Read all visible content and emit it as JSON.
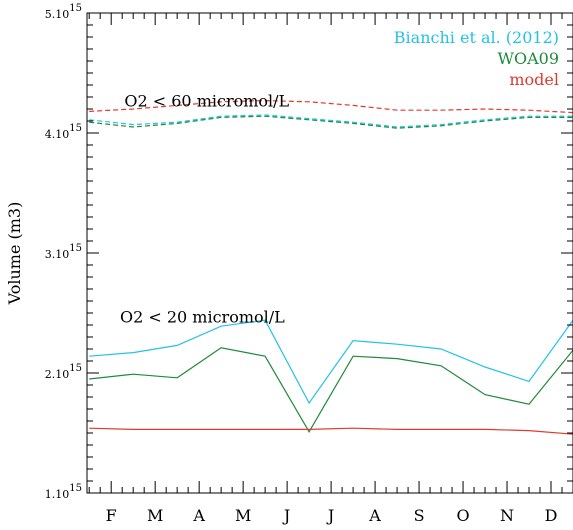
{
  "chart_data": {
    "type": "line",
    "title": "",
    "xlabel": "",
    "ylabel": "Volume (m3)",
    "x_tick_labels": [
      "F",
      "M",
      "A",
      "M",
      "J",
      "J",
      "A",
      "S",
      "O",
      "N",
      "D"
    ],
    "x_tick_months": [
      2,
      3,
      4,
      5,
      6,
      7,
      8,
      9,
      10,
      11,
      12
    ],
    "xlim": [
      1.45,
      12.5
    ],
    "y_ticks": [
      {
        "value": 1000000000000000.0,
        "mantissa": "1.10",
        "exponent": "15"
      },
      {
        "value": 2000000000000000.0,
        "mantissa": "2.10",
        "exponent": "15"
      },
      {
        "value": 3000000000000000.0,
        "mantissa": "3.10",
        "exponent": "15"
      },
      {
        "value": 4000000000000000.0,
        "mantissa": "4.10",
        "exponent": "15"
      },
      {
        "value": 5000000000000000.0,
        "mantissa": "5.10",
        "exponent": "15"
      }
    ],
    "ylim": [
      1000000000000000.0,
      5000000000000000.0
    ],
    "y_minor_per_major": 10,
    "x_minor_per_month": 4,
    "grid": false,
    "legend_position": "top-right",
    "annotations": [
      {
        "text": "O2 < 60 micromol/L",
        "x": 2.3,
        "y": 4220000000000000.0
      },
      {
        "text": "O2 < 20 micromol/L",
        "x": 2.2,
        "y": 2420000000000000.0
      }
    ],
    "series": [
      {
        "name": "Bianchi et al. (2012)",
        "color": "#22c3e6",
        "dash": "solid",
        "x": [
          1.5,
          2.5,
          3.5,
          4.5,
          5.5,
          6.5,
          7.5,
          8.5,
          9.5,
          10.5,
          11.5,
          12.5
        ],
        "y": [
          2140000000000000.0,
          2170000000000000.0,
          2230000000000000.0,
          2390000000000000.0,
          2440000000000000.0,
          1750000000000000.0,
          2270000000000000.0,
          2240000000000000.0,
          2200000000000000.0,
          2050000000000000.0,
          1930000000000000.0,
          2440000000000000.0
        ]
      },
      {
        "name": "WOA09",
        "color": "#1e8a3c",
        "dash": "solid",
        "x": [
          1.5,
          2.5,
          3.5,
          4.5,
          5.5,
          6.5,
          7.5,
          8.5,
          9.5,
          10.5,
          11.5,
          12.5
        ],
        "y": [
          1950000000000000.0,
          1990000000000000.0,
          1960000000000000.0,
          2210000000000000.0,
          2140000000000000.0,
          1510000000000000.0,
          2140000000000000.0,
          2120000000000000.0,
          2060000000000000.0,
          1820000000000000.0,
          1740000000000000.0,
          2190000000000000.0
        ]
      },
      {
        "name": "model",
        "color": "#e03a2e",
        "dash": "solid",
        "x": [
          1.5,
          2.5,
          3.5,
          4.5,
          5.5,
          6.5,
          7.5,
          8.5,
          9.5,
          10.5,
          11.5,
          12.5
        ],
        "y": [
          1540000000000000.0,
          1530000000000000.0,
          1530000000000000.0,
          1530000000000000.0,
          1530000000000000.0,
          1530000000000000.0,
          1540000000000000.0,
          1530000000000000.0,
          1530000000000000.0,
          1530000000000000.0,
          1520000000000000.0,
          1490000000000000.0
        ]
      },
      {
        "color": "#22c3e6",
        "dash": "dashed",
        "x": [
          1.5,
          2.5,
          3.5,
          4.5,
          5.5,
          6.5,
          7.5,
          8.5,
          9.5,
          10.5,
          11.5,
          12.5
        ],
        "y": [
          4110000000000000.0,
          4070000000000000.0,
          4090000000000000.0,
          4140000000000000.0,
          4150000000000000.0,
          4120000000000000.0,
          4090000000000000.0,
          4050000000000000.0,
          4070000000000000.0,
          4110000000000000.0,
          4140000000000000.0,
          4140000000000000.0
        ]
      },
      {
        "color": "#1e8a3c",
        "dash": "dashed",
        "x": [
          1.5,
          2.5,
          3.5,
          4.5,
          5.5,
          6.5,
          7.5,
          8.5,
          9.5,
          10.5,
          11.5,
          12.5
        ],
        "y": [
          4090000000000000.0,
          4050000000000000.0,
          4080000000000000.0,
          4130000000000000.0,
          4140000000000000.0,
          4110000000000000.0,
          4080000000000000.0,
          4040000000000000.0,
          4060000000000000.0,
          4100000000000000.0,
          4130000000000000.0,
          4130000000000000.0
        ]
      },
      {
        "color": "#e03a2e",
        "dash": "dashed",
        "x": [
          1.5,
          2.5,
          3.5,
          4.5,
          5.5,
          6.5,
          7.5,
          8.5,
          9.5,
          10.5,
          11.5,
          12.5
        ],
        "y": [
          4180000000000000.0,
          4200000000000000.0,
          4230000000000000.0,
          4260000000000000.0,
          4270000000000000.0,
          4260000000000000.0,
          4230000000000000.0,
          4190000000000000.0,
          4190000000000000.0,
          4200000000000000.0,
          4190000000000000.0,
          4170000000000000.0
        ]
      }
    ]
  }
}
